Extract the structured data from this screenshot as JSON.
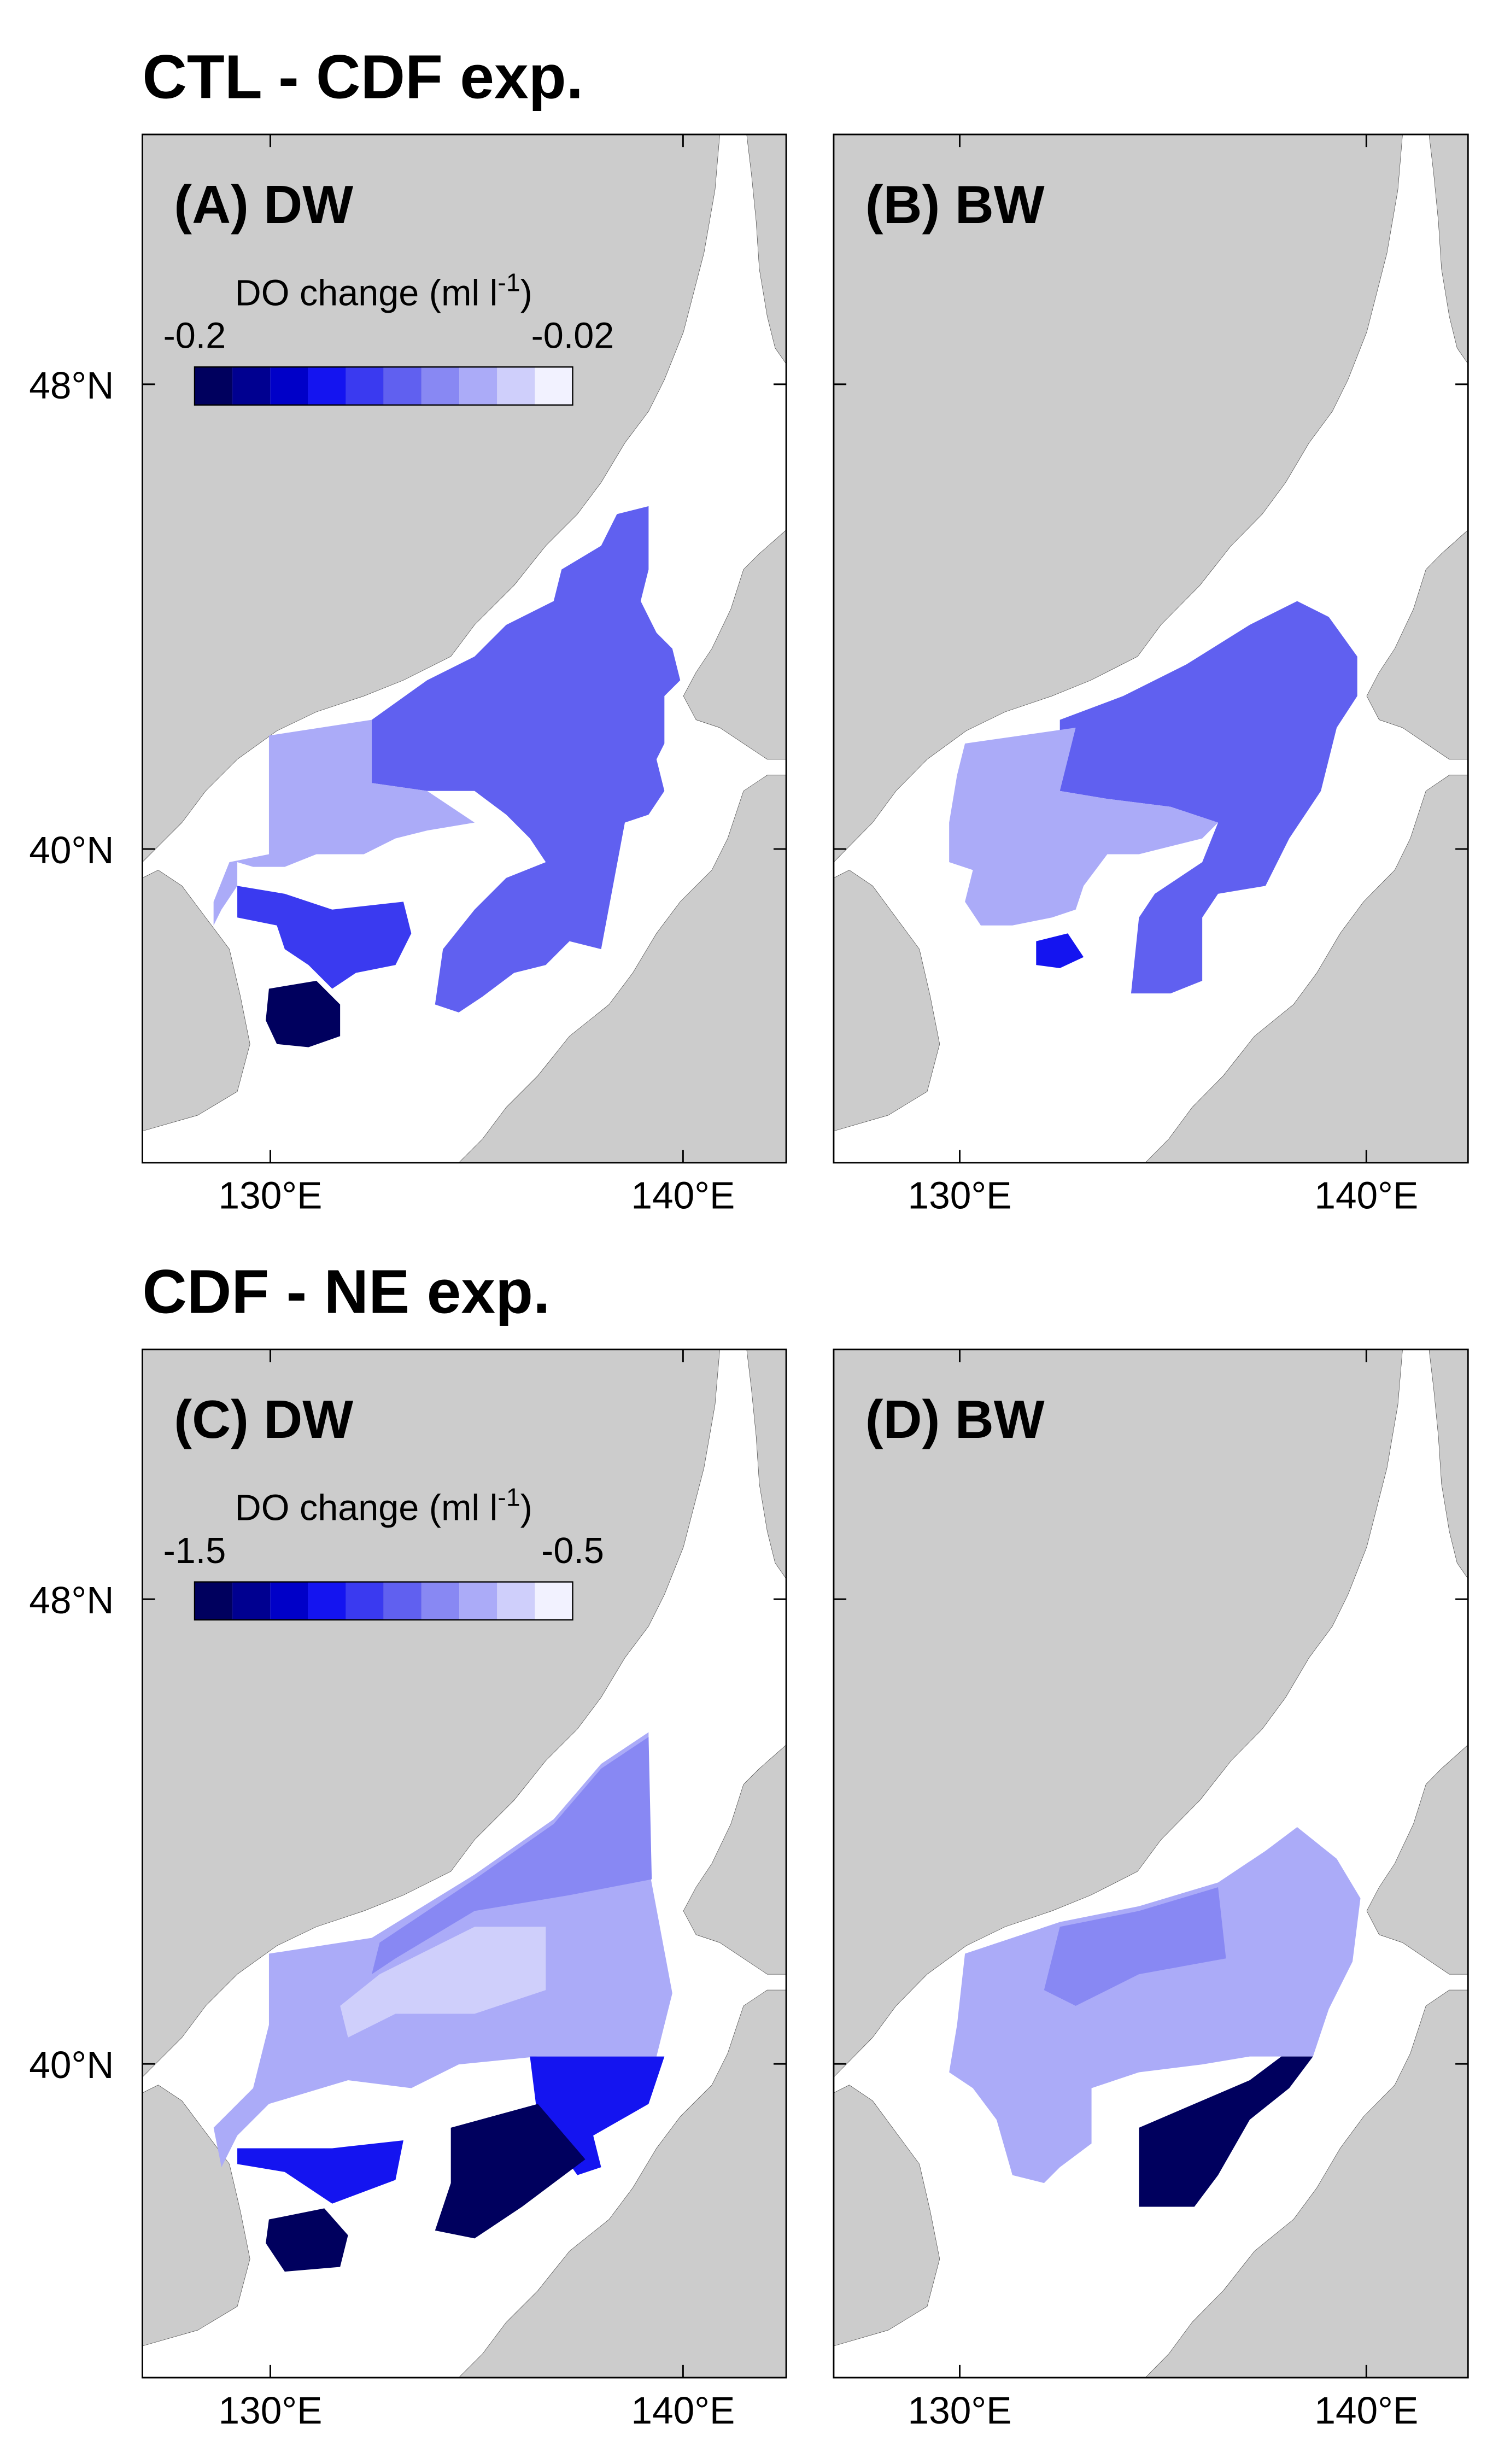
{
  "figure": {
    "sections": [
      {
        "title": "CTL - CDF exp.",
        "panels": [
          {
            "label": "(A) DW",
            "colorbar": {
              "title": "DO change (ml l",
              "title_superscript": "-1",
              "title_close": ")",
              "range": [
                -0.2,
                -0.02
              ],
              "colors": [
                "#00005e",
                "#000090",
                "#0000c8",
                "#1414f0",
                "#3a3af0",
                "#6060f0",
                "#8888f3",
                "#ababf8",
                "#cfcffb",
                "#f2f2ff"
              ]
            }
          },
          {
            "label": "(B) BW"
          }
        ]
      },
      {
        "title": "CDF - NE exp.",
        "panels": [
          {
            "label": "(C) DW",
            "colorbar": {
              "title": "DO change (ml l",
              "title_superscript": "-1",
              "title_close": ")",
              "range": [
                -1.5,
                -0.5
              ],
              "colors": [
                "#00005e",
                "#000090",
                "#0000c8",
                "#1414f0",
                "#3a3af0",
                "#6060f0",
                "#8888f3",
                "#ababf8",
                "#cfcffb",
                "#f2f2ff"
              ]
            }
          },
          {
            "label": "(D) BW"
          }
        ]
      }
    ],
    "lat_ticks": [
      {
        "value": 48,
        "label": "48°N"
      },
      {
        "value": 40,
        "label": "40°N"
      }
    ],
    "lon_ticks": [
      {
        "value": 130,
        "label": "130°E"
      },
      {
        "value": 140,
        "label": "140°E"
      }
    ],
    "xlim": [
      126.9,
      142.5
    ],
    "ylim": [
      34.6,
      52.3
    ],
    "land_color": "#cccccc"
  }
}
